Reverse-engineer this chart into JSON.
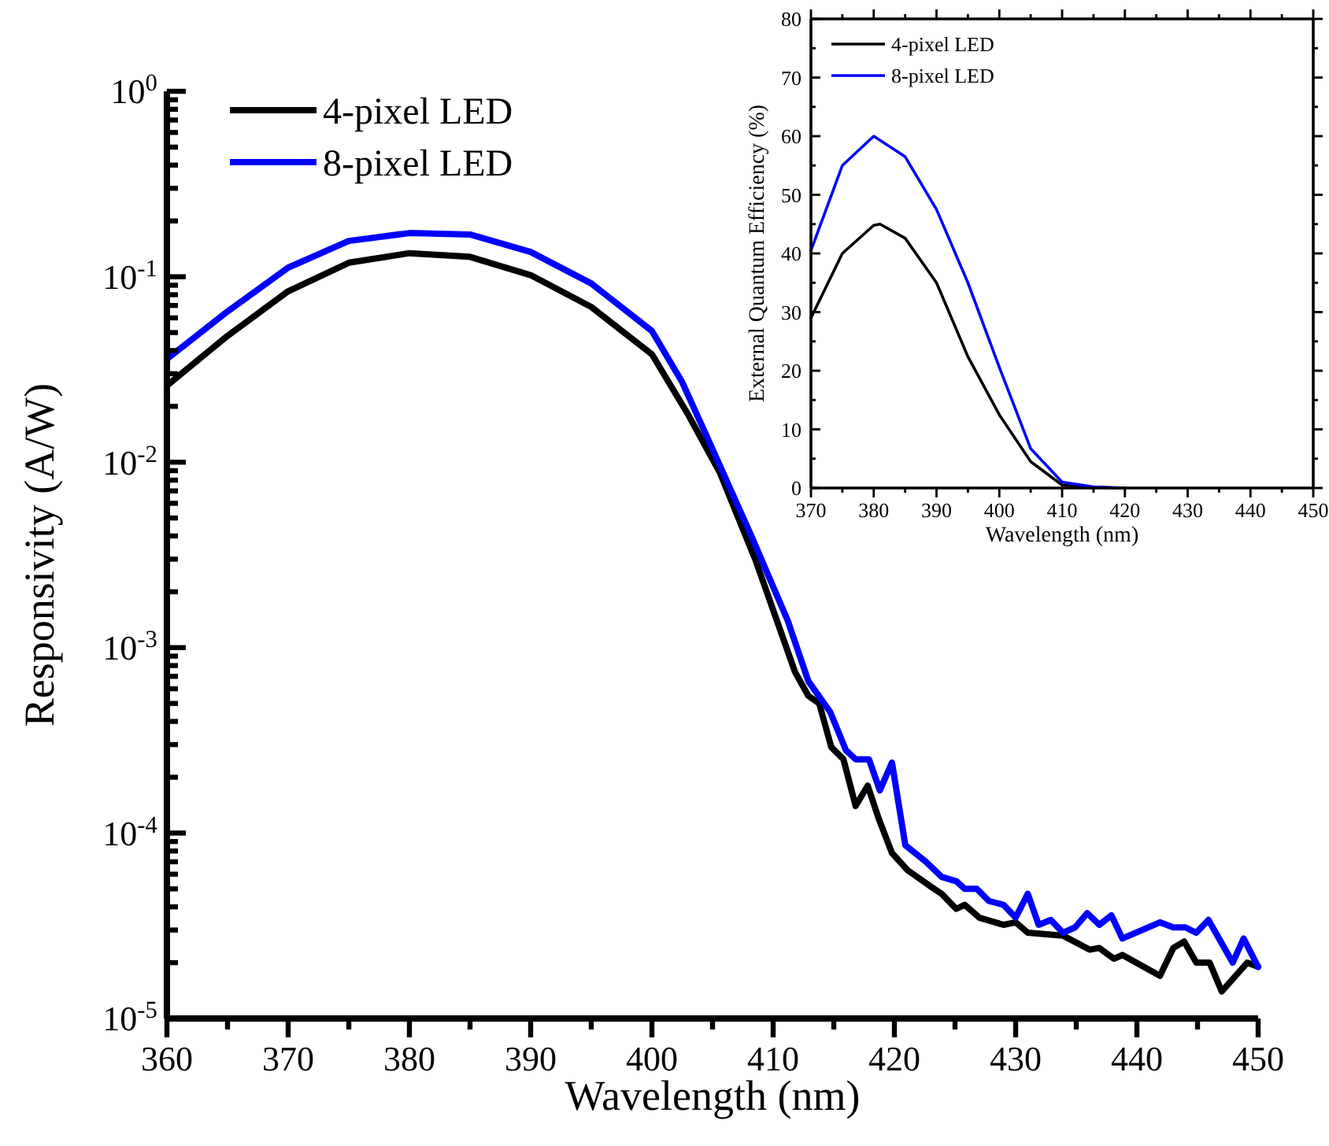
{
  "chart_data": [
    {
      "type": "line",
      "xlabel": "Wavelength (nm)",
      "ylabel": "Responsivity (A/W)",
      "log": "y",
      "legend": "top left",
      "xlim": [
        360,
        450
      ],
      "xticks": [
        360,
        {
          "value": 365,
          "label": null
        },
        370,
        {
          "value": 375,
          "label": null
        },
        380,
        {
          "value": 385,
          "label": null
        },
        390,
        {
          "value": 395,
          "label": null
        },
        400,
        {
          "value": 405,
          "label": null
        },
        410,
        {
          "value": 415,
          "label": null
        },
        420,
        {
          "value": 425,
          "label": null
        },
        430,
        {
          "value": 435,
          "label": null
        },
        440,
        {
          "value": 445,
          "label": null
        },
        450
      ],
      "ylim": [
        1e-05,
        1
      ],
      "yticks": [
        {
          "value": 1e-05,
          "label": "10$^{-5}$"
        },
        {
          "value": 2e-05,
          "label": null
        },
        {
          "value": 3e-05,
          "label": null
        },
        {
          "value": 4e-05,
          "label": null
        },
        {
          "value": 5e-05,
          "label": null
        },
        {
          "value": 6e-05,
          "label": null
        },
        {
          "value": 7e-05,
          "label": null
        },
        {
          "value": 8e-05,
          "label": null
        },
        {
          "value": 9e-05,
          "label": null
        },
        {
          "value": 0.0001,
          "label": "10$^{-4}$"
        },
        {
          "value": 0.0002,
          "label": null
        },
        {
          "value": 0.0003,
          "label": null
        },
        {
          "value": 0.0004,
          "label": null
        },
        {
          "value": 0.0005,
          "label": null
        },
        {
          "value": 0.0006,
          "label": null
        },
        {
          "value": 0.0007,
          "label": null
        },
        {
          "value": 0.0008,
          "label": null
        },
        {
          "value": 0.0009,
          "label": null
        },
        {
          "value": 0.001,
          "label": "10$^{-3}$"
        },
        {
          "value": 0.002,
          "label": null
        },
        {
          "value": 0.003,
          "label": null
        },
        {
          "value": 0.004,
          "label": null
        },
        {
          "value": 0.005,
          "label": null
        },
        {
          "value": 0.006,
          "label": null
        },
        {
          "value": 0.007,
          "label": null
        },
        {
          "value": 0.008,
          "label": null
        },
        {
          "value": 0.009,
          "label": null
        },
        {
          "value": 0.01,
          "label": "10$^{-2}$"
        },
        {
          "value": 0.02,
          "label": null
        },
        {
          "value": 0.03,
          "label": null
        },
        {
          "value": 0.04,
          "label": null
        },
        {
          "value": 0.05,
          "label": null
        },
        {
          "value": 0.06,
          "label": null
        },
        {
          "value": 0.07,
          "label": null
        },
        {
          "value": 0.08,
          "label": null
        },
        {
          "value": 0.09,
          "label": null
        },
        {
          "value": 0.1,
          "label": "10$^{-1}$"
        },
        {
          "value": 0.2,
          "label": null
        },
        {
          "value": 0.3,
          "label": null
        },
        {
          "value": 0.4,
          "label": null
        },
        {
          "value": 0.5,
          "label": null
        },
        {
          "value": 0.6,
          "label": null
        },
        {
          "value": 0.7,
          "label": null
        },
        {
          "value": 0.8,
          "label": null
        },
        {
          "value": 0.9,
          "label": null
        },
        {
          "value": 1,
          "label": "10$^{0}$"
        }
      ],
      "series": [
        {
          "name": "4-pixel LED",
          "color": "#000000",
          "x": [
            360,
            365,
            370,
            375,
            380,
            385,
            390,
            395,
            400,
            403,
            405.6,
            408.6,
            411.8,
            412.9,
            413.8,
            414.8,
            415.8,
            416.8,
            417.8,
            418.7,
            419.8,
            421.1,
            422.9,
            423.9,
            425.1,
            425.8,
            427,
            429,
            430,
            431,
            433.9,
            436.1,
            436.9,
            438.1,
            438.8,
            441.9,
            443,
            443.9,
            444.9,
            446,
            447,
            449.1,
            450
          ],
          "values": [
            0.0259,
            0.048,
            0.0835,
            0.119,
            0.134,
            0.128,
            0.102,
            0.0687,
            0.0382,
            0.018,
            0.0088,
            0.0029,
            0.00074,
            0.00055,
            0.0005,
            0.00029,
            0.00025,
            0.00014,
            0.00018,
            0.00012,
            7.8e-05,
            6.3e-05,
            5.2e-05,
            4.7e-05,
            3.9e-05,
            4.1e-05,
            3.5e-05,
            3.2e-05,
            3.3e-05,
            2.9e-05,
            2.8e-05,
            2.35e-05,
            2.4e-05,
            2.1e-05,
            2.2e-05,
            1.7e-05,
            2.4e-05,
            2.6e-05,
            2e-05,
            2e-05,
            1.4e-05,
            2e-05,
            1.9e-05
          ]
        },
        {
          "name": "8-pixel LED",
          "color": "#0000ff",
          "x": [
            360,
            365,
            370,
            375,
            380,
            385,
            390,
            395,
            400,
            402.5,
            404.7,
            408.2,
            411.2,
            412.9,
            414.7,
            416,
            416.8,
            417.9,
            418.8,
            419.8,
            420.9,
            422.6,
            423.9,
            425.1,
            425.8,
            426.8,
            427.8,
            429,
            430,
            431,
            431.9,
            432.9,
            433.9,
            434.9,
            435.9,
            436.9,
            437.9,
            438.8,
            441.9,
            443,
            444,
            444.9,
            445.9,
            447.9,
            448.8,
            450
          ],
          "values": [
            0.036,
            0.065,
            0.112,
            0.156,
            0.172,
            0.169,
            0.136,
            0.092,
            0.051,
            0.027,
            0.013,
            0.004,
            0.0014,
            0.00066,
            0.00045,
            0.00028,
            0.00025,
            0.00025,
            0.00017,
            0.00024,
            8.6e-05,
            7e-05,
            5.8e-05,
            5.5e-05,
            5e-05,
            5e-05,
            4.3e-05,
            4.1e-05,
            3.5e-05,
            4.7e-05,
            3.2e-05,
            3.4e-05,
            2.9e-05,
            3.1e-05,
            3.7e-05,
            3.2e-05,
            3.6e-05,
            2.7e-05,
            3.3e-05,
            3.1e-05,
            3.1e-05,
            2.9e-05,
            3.4e-05,
            2e-05,
            2.7e-05,
            1.9e-05
          ]
        }
      ]
    },
    {
      "type": "line",
      "xlabel": "Wavelength (nm)",
      "ylabel": "External Quantum Efficiency (%)",
      "legend": "top left",
      "xlim": [
        370,
        450
      ],
      "xticks": [
        370,
        {
          "value": 375,
          "label": null
        },
        380,
        {
          "value": 385,
          "label": null
        },
        390,
        {
          "value": 395,
          "label": null
        },
        400,
        {
          "value": 405,
          "label": null
        },
        410,
        {
          "value": 415,
          "label": null
        },
        420,
        {
          "value": 425,
          "label": null
        },
        430,
        {
          "value": 435,
          "label": null
        },
        440,
        {
          "value": 445,
          "label": null
        },
        450
      ],
      "ylim": [
        0,
        80
      ],
      "yticks": [
        0,
        {
          "value": 5,
          "label": null
        },
        10,
        {
          "value": 15,
          "label": null
        },
        20,
        {
          "value": 25,
          "label": null
        },
        30,
        {
          "value": 35,
          "label": null
        },
        40,
        {
          "value": 45,
          "label": null
        },
        50,
        {
          "value": 55,
          "label": null
        },
        60,
        {
          "value": 65,
          "label": null
        },
        70,
        {
          "value": 75,
          "label": null
        },
        80
      ],
      "series": [
        {
          "name": "4-pixel LED",
          "color": "#000000",
          "x": [
            370,
            375,
            380,
            381,
            385,
            390,
            395,
            400,
            405,
            410,
            415,
            420
          ],
          "values": [
            29,
            40,
            44.8,
            45,
            42.6,
            35,
            22.4,
            12.5,
            4.5,
            0.5,
            0.1,
            0
          ]
        },
        {
          "name": "8-pixel LED",
          "color": "#0000ff",
          "x": [
            370,
            375,
            380,
            385,
            390,
            395,
            400,
            405,
            410,
            415,
            420
          ],
          "values": [
            40.5,
            55,
            60,
            56.5,
            47.5,
            35,
            20.6,
            6.7,
            1,
            0.2,
            0
          ]
        }
      ]
    }
  ]
}
